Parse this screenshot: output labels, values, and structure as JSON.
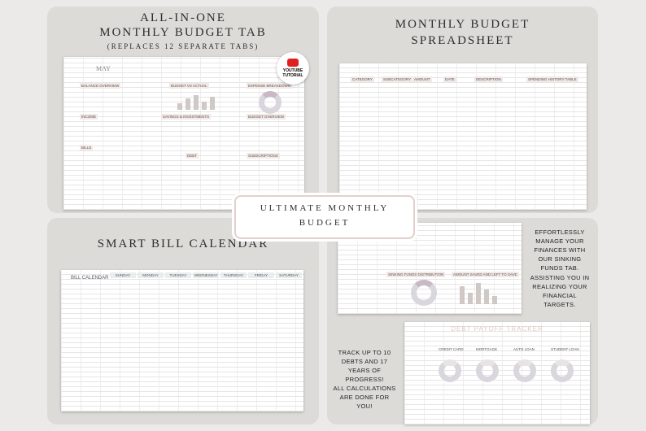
{
  "panels": {
    "budget_tab": {
      "title_lines": [
        "ALL-IN-ONE",
        "MONTHLY BUDGET TAB"
      ],
      "subtitle": "(REPLACES 12 SEPARATE TABS)",
      "badge": "YOUTUBE TUTORIAL",
      "sheet": {
        "month": "MAY",
        "sections": [
          "BALANCE OVERVIEW",
          "BUDGET VS ACTUAL",
          "EXPENSE BREAKDOWN",
          "INCOME",
          "BILLS",
          "SAVINGS & INVESTMENTS",
          "DEBT",
          "BUDGET OVERVIEW",
          "SUBSCRIPTIONS"
        ]
      }
    },
    "spreadsheet": {
      "title_lines": [
        "MONTHLY BUDGET",
        "SPREADSHEET"
      ],
      "sheet": {
        "columns": [
          "CATEGORY",
          "SUBCATEGORY",
          "AMOUNT",
          "DATE",
          "DESCRIPTION"
        ],
        "side_title": "SPENDING HISTORY TABLE"
      }
    },
    "banner": {
      "lines": [
        "ULTIMATE MONTHLY",
        "BUDGET"
      ]
    },
    "bill_calendar": {
      "title": "SMART BILL CALENDAR",
      "sheet": {
        "title": "BILL CALENDAR",
        "days": [
          "SUNDAY",
          "MONDAY",
          "TUESDAY",
          "WEDNESDAY",
          "THURSDAY",
          "FRIDAY",
          "SATURDAY"
        ]
      }
    },
    "sinking_funds": {
      "text_1": "EFFORTLESSLY MANAGE YOUR FINANCES WITH OUR SINKING FUNDS TAB.",
      "text_2": "ASSISTING YOU IN REALIZING YOUR FINANCIAL TARGETS.",
      "sheet": {
        "charts": [
          "SINKING FUNDS DISTRIBUTION",
          "AMOUNT SAVED AND LEFT TO SAVE"
        ]
      }
    },
    "debt": {
      "text_1": "TRACK UP TO 10 DEBTS AND 17 YEARS OF PROGRESS!",
      "text_2": "ALL CALCULATIONS ARE DONE FOR YOU!",
      "sheet": {
        "title": "DEBT PAYOFF TRACKER",
        "debts": [
          "CREDIT CARD",
          "MORTGAGE",
          "AUTO LOAN",
          "STUDENT LOAN"
        ]
      }
    }
  }
}
